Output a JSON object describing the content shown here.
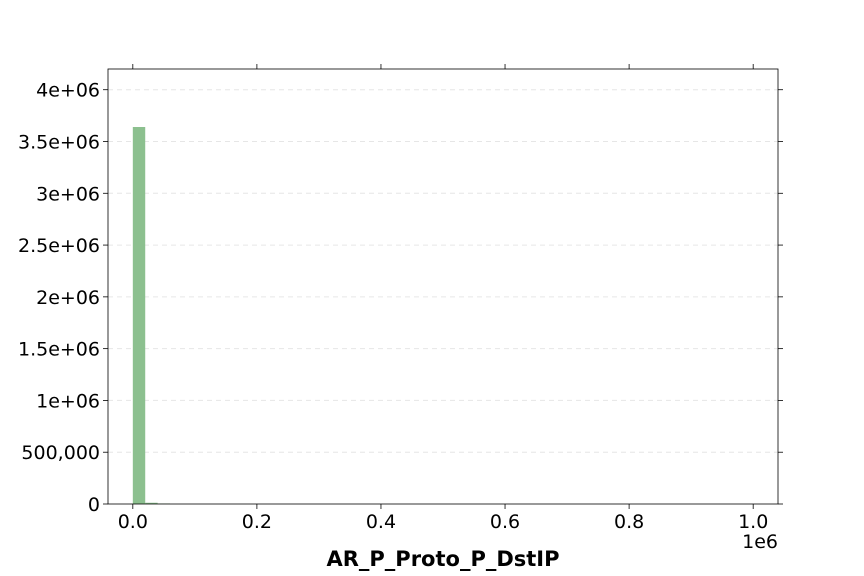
{
  "chart_data": {
    "type": "bar",
    "title": "",
    "xlabel": "AR_P_Proto_P_DstIP",
    "ylabel": "",
    "x_offset_label": "1e6",
    "xlim": [
      -40000,
      1040000
    ],
    "ylim": [
      0,
      4200000
    ],
    "x_ticks": [
      {
        "value": 0,
        "label": "0.0"
      },
      {
        "value": 200000,
        "label": "0.2"
      },
      {
        "value": 400000,
        "label": "0.4"
      },
      {
        "value": 600000,
        "label": "0.6"
      },
      {
        "value": 800000,
        "label": "0.8"
      },
      {
        "value": 1000000,
        "label": "1.0"
      }
    ],
    "y_ticks": [
      {
        "value": 0,
        "label": "0"
      },
      {
        "value": 500000,
        "label": "500,000"
      },
      {
        "value": 1000000,
        "label": "1e+06"
      },
      {
        "value": 1500000,
        "label": "1.5e+06"
      },
      {
        "value": 2000000,
        "label": "2e+06"
      },
      {
        "value": 2500000,
        "label": "2.5e+06"
      },
      {
        "value": 3000000,
        "label": "3e+06"
      },
      {
        "value": 3500000,
        "label": "3.5e+06"
      },
      {
        "value": 4000000,
        "label": "4e+06"
      }
    ],
    "bins": [
      {
        "start": 0,
        "end": 20000,
        "count": 3640000
      },
      {
        "start": 20000,
        "end": 40000,
        "count": 12000
      },
      {
        "start": 40000,
        "end": 60000,
        "count": 3000
      }
    ],
    "bar_color": "#8cc08f",
    "grid": "horizontal dashed",
    "legend": "none"
  }
}
